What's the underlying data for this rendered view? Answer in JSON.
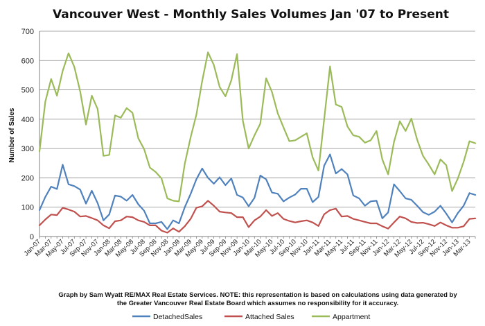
{
  "chart_data": {
    "type": "line",
    "title": "Vancouver West - Monthly Sales Volumes Jan '07 to Present",
    "xlabel": "",
    "ylabel": "Number of Sales",
    "ylim": [
      0,
      700
    ],
    "yticks": [
      0,
      100,
      200,
      300,
      400,
      500,
      600,
      700
    ],
    "grid": true,
    "legend": "bottom",
    "x": [
      "Jan-07",
      "Feb-07",
      "Mar-07",
      "Apr-07",
      "May-07",
      "Jun-07",
      "Jul-07",
      "Aug-07",
      "Sep-07",
      "Oct-07",
      "Nov-07",
      "Dec-07",
      "Jan-08",
      "Feb-08",
      "Mar-08",
      "Apr-08",
      "May-08",
      "Jun-08",
      "Jul-08",
      "Aug-08",
      "Sep-08",
      "Oct-08",
      "Nov-08",
      "Dec-08",
      "Jan-09",
      "Feb-09",
      "Mar-09",
      "Apr-09",
      "May-09",
      "Jun-09",
      "Jul-09",
      "Aug-09",
      "Sep-09",
      "Oct-09",
      "Nov-09",
      "Dec-09",
      "Jan-10",
      "Feb-10",
      "Mar-10",
      "Apr-10",
      "May-10",
      "Jun-10",
      "Jul-10",
      "Aug-10",
      "Sep-10",
      "Oct-10",
      "Nov-10",
      "Dec-10",
      "Jan-11",
      "Feb-11",
      "Mar-11",
      "Apr-11",
      "May-11",
      "Jun-11",
      "Jul-11",
      "Aug-11",
      "Sep-11",
      "Oct-11",
      "Nov-11",
      "Dec-11",
      "Jan-12",
      "Feb-12",
      "Mar-12",
      "Apr-12",
      "May-12",
      "Jun-12",
      "Jul-12",
      "Aug-12",
      "Sep-12",
      "Oct-12",
      "Nov-12",
      "Dec-12",
      "Jan-13",
      "Feb-13",
      "Mar-13",
      "Apr-13"
    ],
    "series": [
      {
        "name": "DetachedSales",
        "color": "#4f81bd",
        "values": [
          90,
          135,
          170,
          162,
          245,
          178,
          172,
          160,
          112,
          156,
          114,
          55,
          75,
          140,
          136,
          122,
          142,
          110,
          88,
          45,
          45,
          50,
          25,
          55,
          45,
          100,
          145,
          195,
          232,
          200,
          180,
          202,
          175,
          198,
          142,
          133,
          103,
          132,
          208,
          195,
          150,
          146,
          120,
          133,
          143,
          163,
          163,
          117,
          135,
          242,
          280,
          215,
          230,
          212,
          140,
          130,
          105,
          120,
          122,
          62,
          82,
          178,
          155,
          130,
          125,
          105,
          83,
          74,
          85,
          105,
          78,
          48,
          80,
          105,
          148,
          142
        ]
      },
      {
        "name": "Attached Sales",
        "color": "#c0504d",
        "values": [
          38,
          58,
          75,
          73,
          98,
          92,
          85,
          68,
          70,
          63,
          55,
          38,
          28,
          52,
          55,
          68,
          66,
          55,
          50,
          38,
          38,
          20,
          13,
          28,
          16,
          35,
          60,
          98,
          103,
          122,
          105,
          85,
          82,
          80,
          66,
          66,
          32,
          55,
          68,
          90,
          70,
          80,
          60,
          53,
          48,
          52,
          55,
          48,
          36,
          76,
          90,
          95,
          68,
          70,
          60,
          55,
          50,
          45,
          45,
          35,
          27,
          48,
          68,
          62,
          50,
          46,
          47,
          42,
          36,
          48,
          38,
          30,
          30,
          35,
          60,
          62
        ]
      },
      {
        "name": "Appartment",
        "color": "#9bbb59",
        "values": [
          290,
          460,
          537,
          480,
          565,
          625,
          578,
          495,
          382,
          480,
          435,
          275,
          278,
          413,
          405,
          438,
          422,
          335,
          298,
          235,
          220,
          198,
          130,
          122,
          120,
          248,
          338,
          415,
          530,
          628,
          585,
          510,
          478,
          532,
          622,
          395,
          300,
          345,
          385,
          540,
          493,
          420,
          372,
          325,
          328,
          340,
          352,
          270,
          225,
          400,
          580,
          450,
          442,
          375,
          345,
          340,
          320,
          328,
          360,
          263,
          212,
          322,
          393,
          360,
          402,
          330,
          275,
          245,
          212,
          263,
          243,
          155,
          198,
          255,
          325,
          318
        ]
      }
    ],
    "note_line1": "Graph by Sam Wyatt RE/MAX Real Estate Services.   NOTE: this representation is based on calculations using data generated by",
    "note_line2": "the Greater Vancouver Real Estate Board which assumes no responsibility for it accuracy."
  }
}
